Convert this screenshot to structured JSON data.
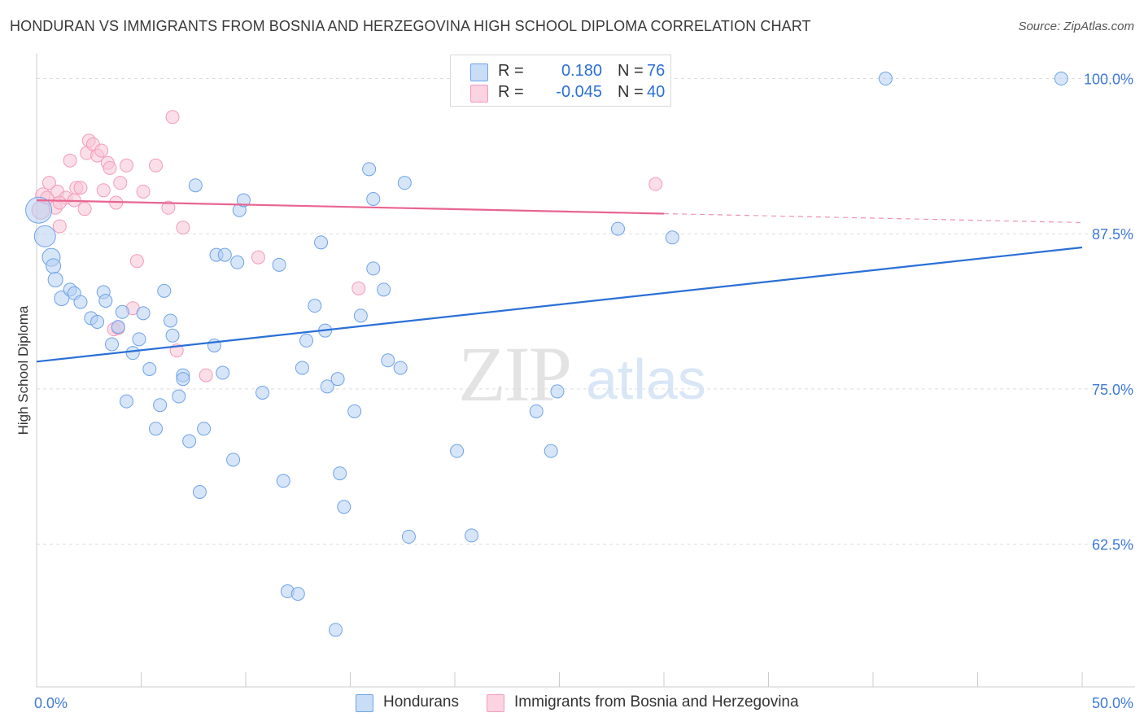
{
  "title": "HONDURAN VS IMMIGRANTS FROM BOSNIA AND HERZEGOVINA HIGH SCHOOL DIPLOMA CORRELATION CHART",
  "source": "Source: ZipAtlas.com",
  "watermark": {
    "zip": "ZIP",
    "atlas": "atlas"
  },
  "legend": {
    "rows": [
      {
        "r_label": "R =",
        "r_value": "0.180",
        "n_label": "N =",
        "n_value": "76",
        "color": "#6fa3e8"
      },
      {
        "r_label": "R =",
        "r_value": "-0.045",
        "n_label": "N =",
        "n_value": "40",
        "color": "#f49bbb"
      }
    ]
  },
  "bottom_legend": [
    {
      "label": "Hondurans",
      "color": "#6fa3e8"
    },
    {
      "label": "Immigrants from Bosnia and Herzegovina",
      "color": "#f49bbb"
    }
  ],
  "chart_data": {
    "type": "scatter",
    "title": "HONDURAN VS IMMIGRANTS FROM BOSNIA AND HERZEGOVINA HIGH SCHOOL DIPLOMA CORRELATION CHART",
    "xlabel": "",
    "ylabel": "High School Diploma",
    "xlim": [
      0,
      50
    ],
    "ylim": [
      51.0,
      102.0
    ],
    "x_tick_labels": [
      {
        "value": 0,
        "label": "0.0%"
      },
      {
        "value": 50,
        "label": "50.0%"
      }
    ],
    "y_tick_labels": [
      {
        "value": 100.0,
        "label": "100.0%"
      },
      {
        "value": 87.5,
        "label": "87.5%"
      },
      {
        "value": 75.0,
        "label": "75.0%"
      },
      {
        "value": 62.5,
        "label": "62.5%"
      }
    ],
    "grid": true,
    "series": [
      {
        "name": "Hondurans",
        "color": "#6fa3e8",
        "line_color": "#2a6fd6",
        "trend": {
          "x0": 0,
          "y0": 77.2,
          "x1": 50,
          "y1": 86.4,
          "solid_to": 50
        },
        "points": [
          [
            0.1,
            89.4,
            16
          ],
          [
            0.4,
            87.3,
            13
          ],
          [
            0.7,
            85.6,
            11
          ],
          [
            0.8,
            84.9,
            9
          ],
          [
            0.9,
            83.8,
            9
          ],
          [
            1.2,
            82.3,
            9
          ],
          [
            1.6,
            83.0,
            8
          ],
          [
            1.8,
            82.7,
            8
          ],
          [
            2.1,
            82.0,
            8
          ],
          [
            2.6,
            80.7,
            8
          ],
          [
            2.9,
            80.4,
            8
          ],
          [
            3.2,
            82.8,
            8
          ],
          [
            3.3,
            82.1,
            8
          ],
          [
            3.6,
            78.6,
            8
          ],
          [
            3.9,
            80.0,
            8
          ],
          [
            4.1,
            81.2,
            8
          ],
          [
            4.3,
            74.0,
            8
          ],
          [
            4.6,
            77.9,
            8
          ],
          [
            4.9,
            79.0,
            8
          ],
          [
            5.1,
            81.1,
            8
          ],
          [
            5.4,
            76.6,
            8
          ],
          [
            5.7,
            71.8,
            8
          ],
          [
            5.9,
            73.7,
            8
          ],
          [
            6.1,
            82.9,
            8
          ],
          [
            6.4,
            80.5,
            8
          ],
          [
            6.5,
            79.3,
            8
          ],
          [
            6.8,
            74.4,
            8
          ],
          [
            7.0,
            76.1,
            8
          ],
          [
            7.3,
            70.8,
            8
          ],
          [
            7.6,
            91.4,
            8
          ],
          [
            7.8,
            66.7,
            8
          ],
          [
            8.0,
            71.8,
            8
          ],
          [
            8.5,
            78.5,
            8
          ],
          [
            8.6,
            85.8,
            8
          ],
          [
            8.9,
            76.3,
            8
          ],
          [
            9.0,
            85.8,
            8
          ],
          [
            9.4,
            69.3,
            8
          ],
          [
            9.6,
            85.2,
            8
          ],
          [
            9.7,
            89.4,
            8
          ],
          [
            9.9,
            90.2,
            8
          ],
          [
            10.8,
            74.7,
            8
          ],
          [
            11.6,
            85.0,
            8
          ],
          [
            11.8,
            67.6,
            8
          ],
          [
            12.0,
            58.7,
            8
          ],
          [
            12.5,
            58.5,
            8
          ],
          [
            12.7,
            76.7,
            8
          ],
          [
            12.9,
            78.9,
            8
          ],
          [
            13.3,
            81.7,
            8
          ],
          [
            13.6,
            86.8,
            8
          ],
          [
            13.8,
            79.7,
            8
          ],
          [
            13.9,
            75.2,
            8
          ],
          [
            14.4,
            75.8,
            8
          ],
          [
            14.5,
            68.2,
            8
          ],
          [
            14.7,
            65.5,
            8
          ],
          [
            14.3,
            55.6,
            8
          ],
          [
            15.2,
            73.2,
            8
          ],
          [
            15.5,
            80.9,
            8
          ],
          [
            15.9,
            92.7,
            8
          ],
          [
            16.1,
            90.3,
            8
          ],
          [
            16.1,
            84.7,
            8
          ],
          [
            16.6,
            83.0,
            8
          ],
          [
            16.8,
            77.3,
            8
          ],
          [
            17.4,
            76.7,
            8
          ],
          [
            17.6,
            91.6,
            8
          ],
          [
            17.8,
            63.1,
            8
          ],
          [
            20.1,
            70.0,
            8
          ],
          [
            20.8,
            63.2,
            8
          ],
          [
            23.9,
            73.2,
            8
          ],
          [
            24.6,
            70.0,
            8
          ],
          [
            24.9,
            74.8,
            8
          ],
          [
            26.7,
            100.0,
            8
          ],
          [
            27.8,
            87.9,
            8
          ],
          [
            30.4,
            87.2,
            8
          ],
          [
            40.6,
            100.0,
            8
          ],
          [
            49.0,
            100.0,
            8
          ],
          [
            7.0,
            75.8,
            8
          ]
        ]
      },
      {
        "name": "Immigrants from Bosnia and Herzegovina",
        "color": "#f49bbb",
        "line_color": "#e8658f",
        "trend": {
          "x0": 0,
          "y0": 90.2,
          "x1": 50,
          "y1": 88.4,
          "solid_to": 30
        },
        "points": [
          [
            0.2,
            89.4,
            11
          ],
          [
            0.3,
            90.6,
            9
          ],
          [
            0.5,
            90.4,
            8
          ],
          [
            0.6,
            91.6,
            8
          ],
          [
            0.9,
            89.6,
            8
          ],
          [
            1.0,
            90.9,
            8
          ],
          [
            1.1,
            88.1,
            8
          ],
          [
            1.4,
            90.4,
            8
          ],
          [
            1.6,
            93.4,
            8
          ],
          [
            1.8,
            90.2,
            8
          ],
          [
            1.9,
            91.2,
            8
          ],
          [
            2.1,
            91.2,
            8
          ],
          [
            2.3,
            89.5,
            8
          ],
          [
            2.4,
            94.0,
            8
          ],
          [
            2.5,
            95.0,
            8
          ],
          [
            2.7,
            94.7,
            8
          ],
          [
            2.9,
            93.8,
            8
          ],
          [
            3.1,
            94.2,
            8
          ],
          [
            3.2,
            91.0,
            8
          ],
          [
            3.4,
            93.2,
            8
          ],
          [
            3.5,
            92.8,
            8
          ],
          [
            3.7,
            79.8,
            8
          ],
          [
            3.8,
            90.0,
            8
          ],
          [
            3.9,
            79.9,
            8
          ],
          [
            4.0,
            91.6,
            8
          ],
          [
            4.3,
            93.0,
            8
          ],
          [
            4.6,
            81.5,
            8
          ],
          [
            4.8,
            85.3,
            8
          ],
          [
            5.1,
            90.9,
            8
          ],
          [
            5.7,
            93.0,
            8
          ],
          [
            6.3,
            89.6,
            8
          ],
          [
            6.5,
            96.9,
            8
          ],
          [
            6.7,
            78.1,
            8
          ],
          [
            7.0,
            88.0,
            8
          ],
          [
            8.1,
            76.1,
            8
          ],
          [
            10.6,
            85.6,
            8
          ],
          [
            15.4,
            83.1,
            8
          ],
          [
            20.6,
            99.0,
            8
          ],
          [
            29.6,
            91.5,
            8
          ],
          [
            1.1,
            90.0,
            8
          ]
        ]
      }
    ]
  }
}
